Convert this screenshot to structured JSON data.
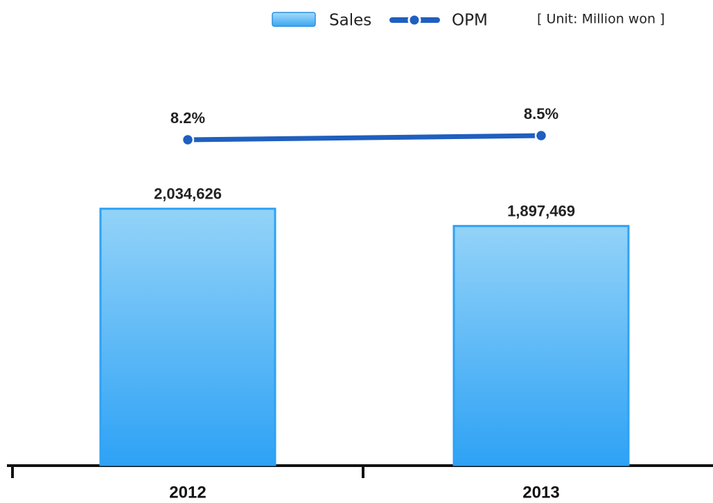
{
  "chart_data": {
    "type": "bar",
    "unit_label": "[ Unit: Million won ]",
    "categories": [
      "2012",
      "2013"
    ],
    "series": [
      {
        "name": "Sales",
        "type": "bar",
        "color": "#2ea2f5",
        "values": [
          2034626,
          1897469
        ],
        "value_labels": [
          "2,034,626",
          "1,897,469"
        ]
      },
      {
        "name": "OPM",
        "type": "line",
        "axis": "y2",
        "color": "#1f5fbf",
        "values": [
          8.2,
          8.5
        ],
        "value_labels": [
          "8.2%",
          "8.5%"
        ]
      }
    ],
    "ylim": [
      0,
      2500000
    ],
    "y2lim": [
      8,
      9
    ]
  }
}
